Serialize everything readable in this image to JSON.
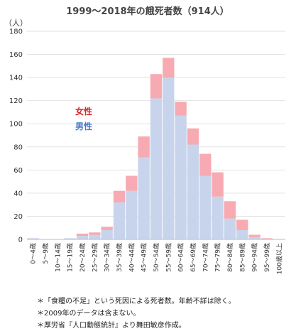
{
  "chart_data": {
    "type": "bar",
    "stacked": true,
    "title": "1999〜2018年の餓死者数（914人）",
    "unit_label": "（人）",
    "ylim": [
      0,
      180
    ],
    "yticks": [
      0,
      20,
      40,
      60,
      80,
      100,
      120,
      140,
      160,
      180
    ],
    "categories": [
      "0〜4歳",
      "5〜9歳",
      "10〜14歳",
      "15〜19歳",
      "20〜24歳",
      "25〜29歳",
      "30〜34歳",
      "35〜39歳",
      "40〜44歳",
      "45〜49歳",
      "50〜54歳",
      "55〜59歳",
      "60〜64歳",
      "65〜69歳",
      "70〜74歳",
      "75〜79歳",
      "80〜84歳",
      "85〜89歳",
      "90〜94歳",
      "95〜99歳",
      "100歳以上"
    ],
    "series": [
      {
        "name": "男性",
        "color": "#c7d4ec",
        "values": [
          1,
          0,
          0,
          1,
          3,
          4,
          8,
          32,
          42,
          71,
          122,
          140,
          107,
          82,
          55,
          37,
          18,
          8,
          2,
          0,
          0
        ]
      },
      {
        "name": "女性",
        "color": "#f7aab1",
        "values": [
          0,
          0,
          0,
          0,
          2,
          2,
          3,
          10,
          13,
          18,
          21,
          17,
          12,
          14,
          19,
          21,
          15,
          9,
          2,
          1,
          0
        ]
      }
    ],
    "legend": [
      "女性",
      "男性"
    ],
    "legend_placement": "left, inside plot",
    "notes": [
      "＊「食糧の不足」という死因による死者数。年齢不詳は除く。",
      "＊2009年のデータは含まない。",
      "＊厚労省『人口動態統計』より舞田敏彦作成。"
    ]
  }
}
